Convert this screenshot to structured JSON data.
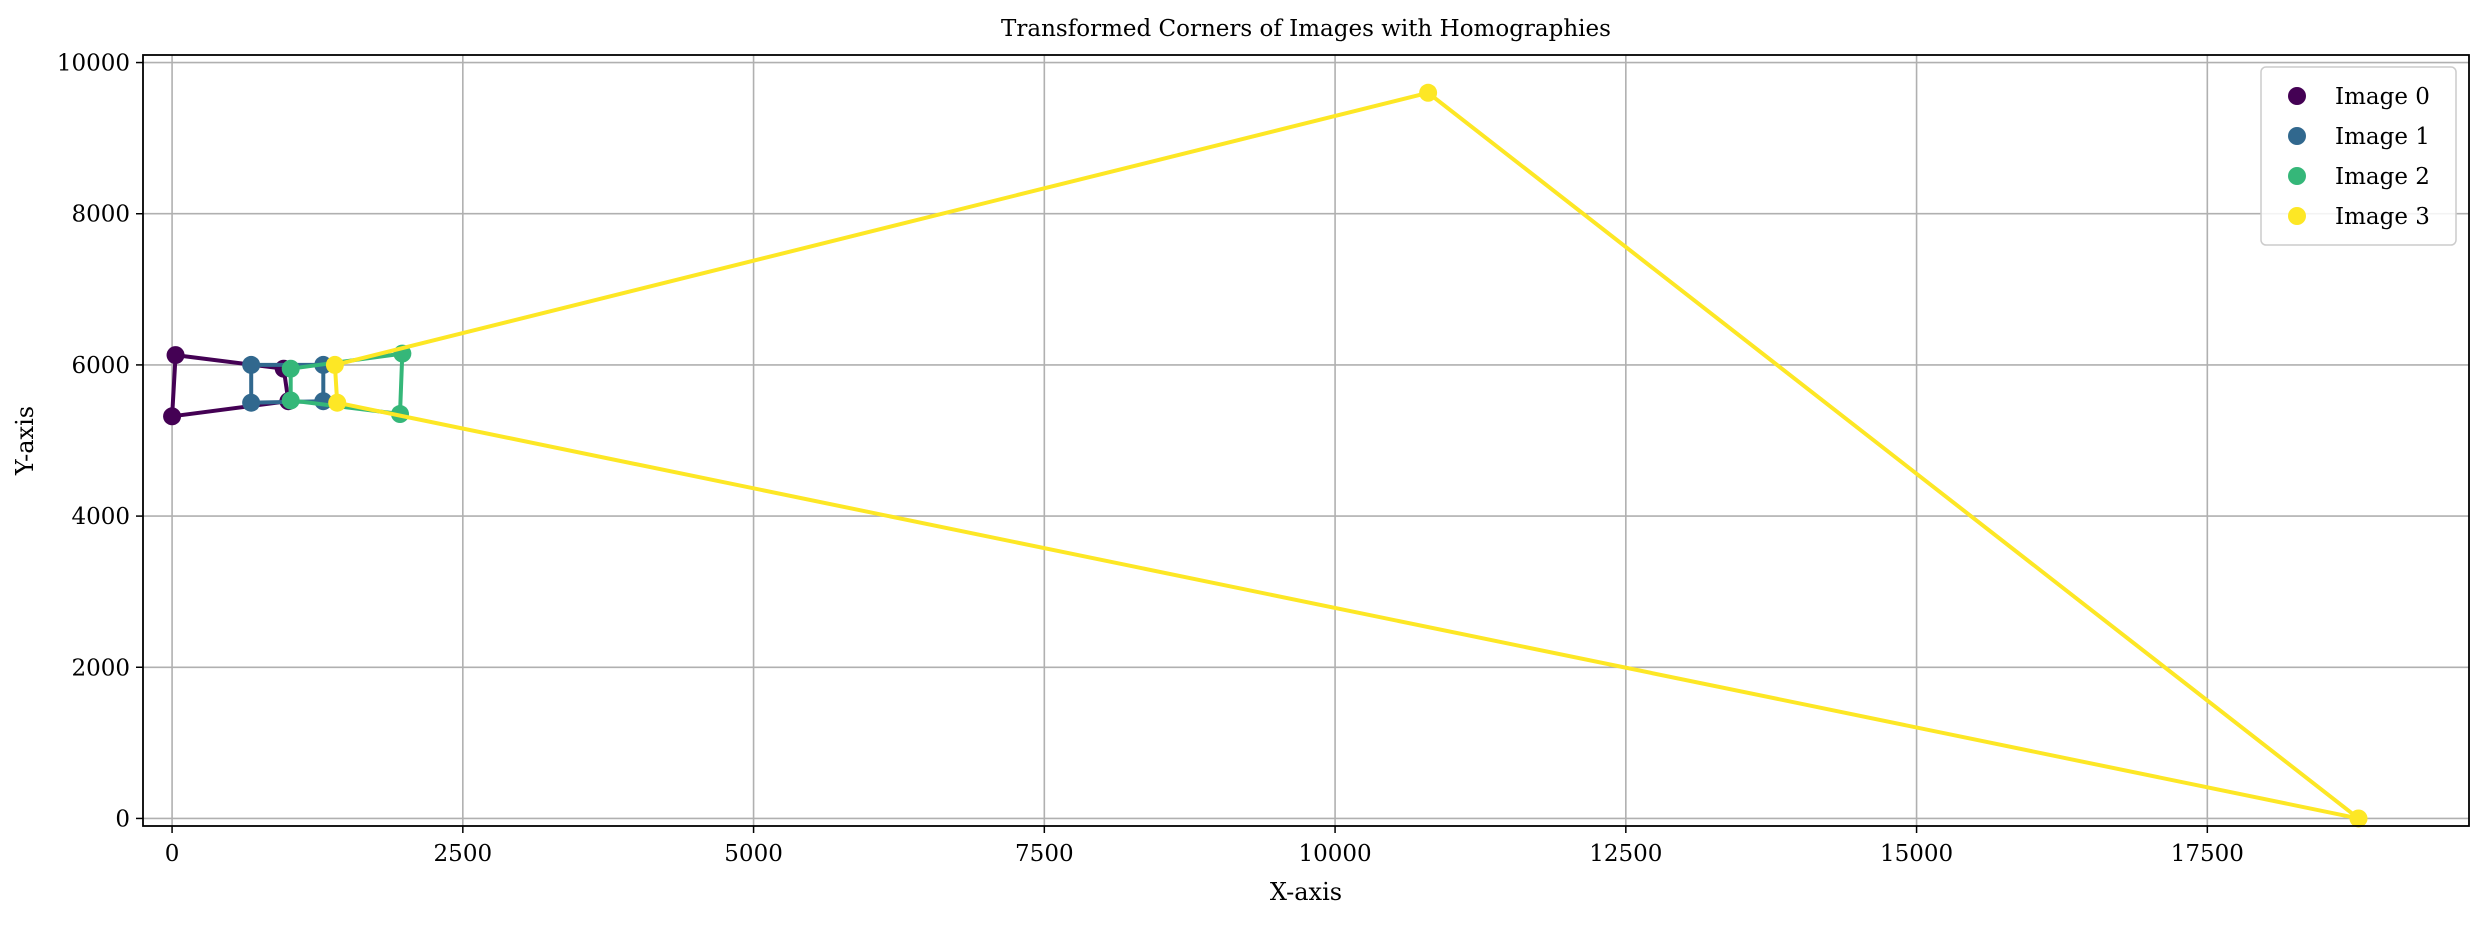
{
  "chart_data": {
    "type": "scatter",
    "title": "Transformed Corners of Images with Homographies",
    "xlabel": "X-axis",
    "ylabel": "Y-axis",
    "xlim": [
      -250,
      19750
    ],
    "ylim": [
      -100,
      10100
    ],
    "xticks": [
      0,
      2500,
      5000,
      7500,
      10000,
      12500,
      15000,
      17500
    ],
    "xtick_labels": [
      "0",
      "2500",
      "5000",
      "7500",
      "10000",
      "12500",
      "15000",
      "17500"
    ],
    "yticks": [
      0,
      2000,
      4000,
      6000,
      8000,
      10000
    ],
    "ytick_labels": [
      "0",
      "2000",
      "4000",
      "6000",
      "8000",
      "10000"
    ],
    "grid": true,
    "legend": "top-right",
    "series": [
      {
        "name": "Image 0",
        "color": "#440154",
        "points": [
          [
            0,
            5320
          ],
          [
            30,
            6130
          ],
          [
            960,
            5950
          ],
          [
            1000,
            5520
          ]
        ]
      },
      {
        "name": "Image 1",
        "color": "#31688e",
        "points": [
          [
            680,
            5500
          ],
          [
            680,
            6000
          ],
          [
            1300,
            6000
          ],
          [
            1300,
            5520
          ]
        ]
      },
      {
        "name": "Image 2",
        "color": "#35b779",
        "points": [
          [
            1020,
            5530
          ],
          [
            1020,
            5950
          ],
          [
            1980,
            6150
          ],
          [
            1960,
            5350
          ]
        ]
      },
      {
        "name": "Image 3",
        "color": "#fde725",
        "points": [
          [
            1420,
            5500
          ],
          [
            1400,
            6000
          ],
          [
            10800,
            9600
          ],
          [
            18800,
            0
          ]
        ]
      }
    ]
  }
}
